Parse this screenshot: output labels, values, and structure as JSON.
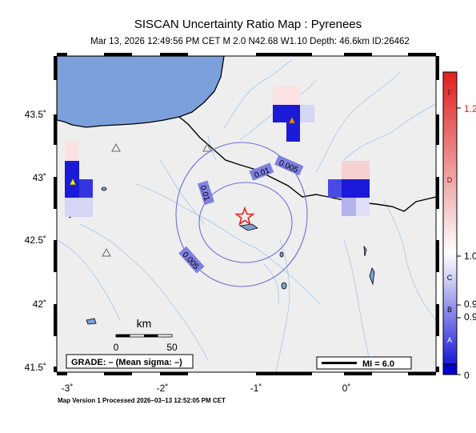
{
  "header": {
    "title": "SISCAN Uncertainty Ratio Map : Pyrenees",
    "subtitle": "Mar 13, 2026 12:49:56 PM CET    M 2.0    N42.68 W1.10    Depth: 46.6km    ID:26462"
  },
  "map": {
    "lon_range": [
      -3.1,
      0.9
    ],
    "lat_range": [
      41.45,
      43.95
    ],
    "lat_ticks": [
      "43.5˚",
      "43˚",
      "42.5˚",
      "42˚",
      "41.5˚"
    ],
    "lon_ticks": [
      "-3˚",
      "-2˚",
      "-1˚",
      "0˚"
    ],
    "epicenter": {
      "lon": -1.1,
      "lat": 42.68
    },
    "contours": [
      {
        "label": "0.01",
        "label2": "0.01"
      },
      {
        "label": "0.005",
        "label2": "0.005"
      }
    ],
    "colors": {
      "sea": "#7ba0db",
      "land": "#eeeeee",
      "epicenter": "#ee2222",
      "contour": "#6e6ed8"
    }
  },
  "scale_bar": {
    "title": "km",
    "min_label": "0",
    "max_label": "50"
  },
  "grade_box": {
    "text": "GRADE: – (Mean sigma: –)"
  },
  "mi_box": {
    "text": "MI = 6.0"
  },
  "colorbar": {
    "grade_letters": [
      "F",
      "D",
      "C",
      "B",
      "A"
    ],
    "values": [
      "1.2",
      "1.0",
      "0.9",
      "0.9",
      "0"
    ],
    "colors": {
      "top": "#e02020",
      "mid": "#ffffff",
      "bottom": "#1010d0"
    }
  },
  "footer": {
    "text": "Map Version 1 Processed 2026–03–13 12:52:05 PM CET"
  }
}
